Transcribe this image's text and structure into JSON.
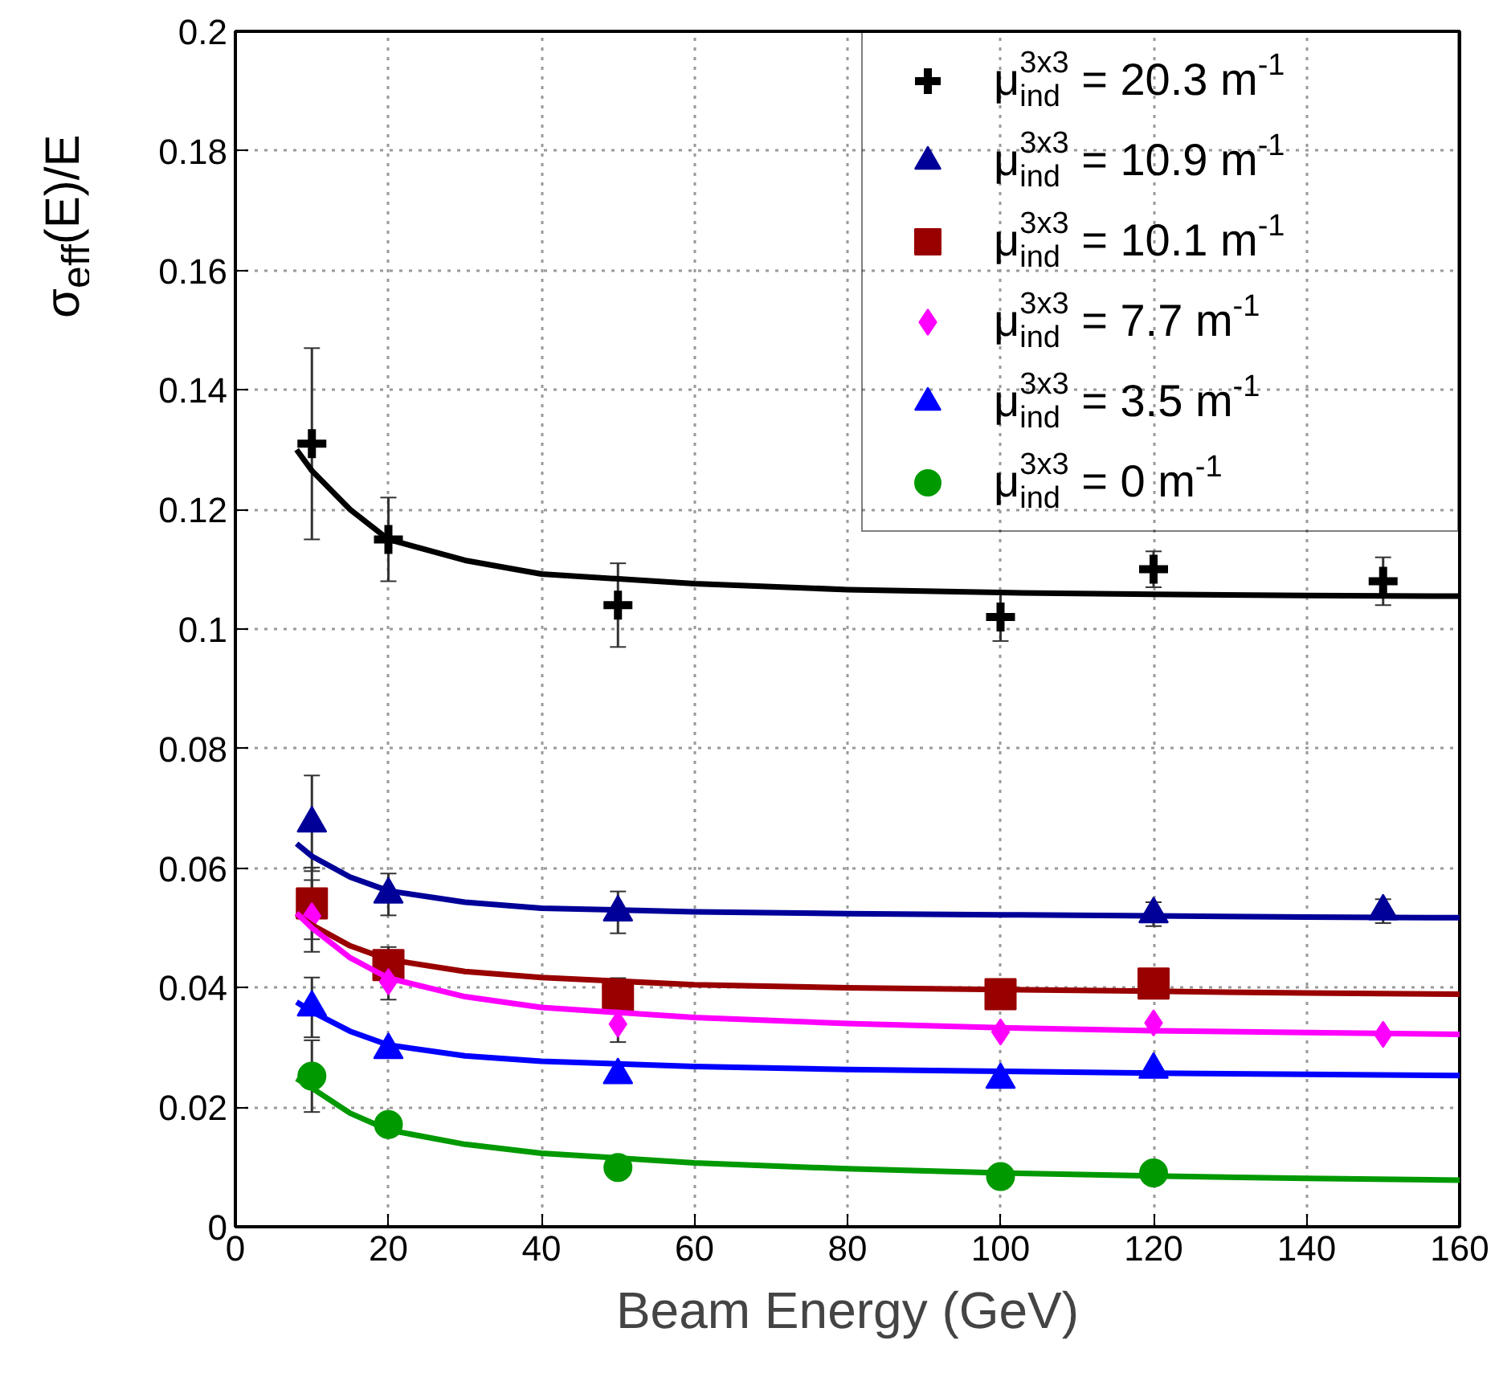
{
  "chart_data": {
    "type": "scatter",
    "xlabel": "Beam Energy (GeV)",
    "ylabel": "σ$_{eff}$(E)/E",
    "xlim": [
      0,
      160
    ],
    "ylim": [
      0,
      0.2
    ],
    "xticks": [
      0,
      20,
      40,
      60,
      80,
      100,
      120,
      140,
      160
    ],
    "yticks": [
      0,
      0.02,
      0.04,
      0.06,
      0.08,
      0.1,
      0.12,
      0.14,
      0.16,
      0.18,
      0.2
    ],
    "grid": true,
    "legend": "top right",
    "series": [
      {
        "name": "μ$^{3x3}$$_{ind}$ = 20.3 m$^{-1}$",
        "color": "#000000",
        "marker": "cross",
        "x": [
          10,
          20,
          50,
          100,
          120,
          150
        ],
        "values": [
          0.131,
          0.115,
          0.104,
          0.102,
          0.11,
          0.108
        ],
        "errors": [
          0.016,
          0.007,
          0.007,
          0.004,
          0.003,
          0.004
        ]
      },
      {
        "name": "μ$^{3x3}$$_{ind}$ = 10.9 m$^{-1}$",
        "color": "#000099",
        "marker": "triangle",
        "x": [
          10,
          20,
          50,
          120,
          150
        ],
        "values": [
          0.0675,
          0.0556,
          0.0526,
          0.0523,
          0.0528
        ],
        "errors": [
          0.008,
          0.0035,
          0.0035,
          0.002,
          0.002
        ]
      },
      {
        "name": "μ$^{3x3}$$_{ind}$ = 10.1 m$^{-1}$",
        "color": "#990000",
        "marker": "square",
        "x": [
          10,
          20,
          50,
          100,
          120
        ],
        "values": [
          0.0541,
          0.0438,
          0.0386,
          0.0389,
          0.0407
        ],
        "errors": [
          0.006,
          0.003,
          0.003,
          null,
          null
        ]
      },
      {
        "name": "μ$^{3x3}$$_{ind}$ = 7.7 m$^{-1}$",
        "color": "#ff00ff",
        "marker": "diamond",
        "x": [
          10,
          20,
          50,
          100,
          120,
          150
        ],
        "values": [
          0.052,
          0.041,
          0.0339,
          0.0326,
          0.0341,
          0.0322
        ],
        "errors": [
          0.006,
          0.003,
          0.003,
          null,
          null,
          null
        ]
      },
      {
        "name": "μ$^{3x3}$$_{ind}$ = 3.5 m$^{-1}$",
        "color": "#0000ff",
        "marker": "triangle",
        "x": [
          10,
          20,
          50,
          100,
          120
        ],
        "values": [
          0.0367,
          0.0296,
          0.0254,
          0.0246,
          0.0263
        ],
        "errors": [
          0.005,
          null,
          null,
          null,
          null
        ]
      },
      {
        "name": "μ$^{3x3}$$_{ind}$ = 0 m$^{-1}$",
        "color": "#009900",
        "marker": "circle",
        "x": [
          10,
          20,
          50,
          100,
          120
        ],
        "values": [
          0.0252,
          0.0171,
          0.0099,
          0.0084,
          0.009
        ],
        "errors": [
          0.006,
          null,
          null,
          null,
          null
        ]
      },
      {
        "type": "line",
        "color": "#000000",
        "x": [
          8,
          10,
          15,
          20,
          30,
          40,
          60,
          80,
          100,
          120,
          140,
          160
        ],
        "values": [
          0.13,
          0.1265,
          0.12,
          0.115,
          0.1115,
          0.1092,
          0.1076,
          0.1066,
          0.1061,
          0.1058,
          0.1056,
          0.1055
        ]
      },
      {
        "type": "line",
        "color": "#000099",
        "x": [
          8,
          10,
          15,
          20,
          30,
          40,
          60,
          80,
          100,
          120,
          140,
          160
        ],
        "values": [
          0.0641,
          0.062,
          0.0585,
          0.0562,
          0.0543,
          0.0533,
          0.0527,
          0.0524,
          0.0522,
          0.052,
          0.0518,
          0.0517
        ]
      },
      {
        "type": "line",
        "color": "#990000",
        "x": [
          8,
          10,
          15,
          20,
          30,
          40,
          60,
          80,
          100,
          120,
          140,
          160
        ],
        "values": [
          0.0523,
          0.0505,
          0.047,
          0.0447,
          0.0427,
          0.0417,
          0.0405,
          0.04,
          0.0397,
          0.0394,
          0.0391,
          0.0389
        ]
      },
      {
        "type": "line",
        "color": "#ff00ff",
        "x": [
          8,
          10,
          15,
          20,
          30,
          40,
          60,
          80,
          100,
          120,
          140,
          160
        ],
        "values": [
          0.0525,
          0.05,
          0.045,
          0.0416,
          0.0385,
          0.0367,
          0.035,
          0.034,
          0.0333,
          0.0328,
          0.0325,
          0.0322
        ]
      },
      {
        "type": "line",
        "color": "#0000ff",
        "x": [
          8,
          10,
          15,
          20,
          30,
          40,
          60,
          80,
          100,
          120,
          140,
          160
        ],
        "values": [
          0.0376,
          0.036,
          0.0327,
          0.0304,
          0.0286,
          0.0277,
          0.0268,
          0.0263,
          0.026,
          0.0257,
          0.0255,
          0.0253
        ]
      },
      {
        "type": "line",
        "color": "#009900",
        "x": [
          8,
          10,
          15,
          20,
          30,
          40,
          60,
          80,
          100,
          120,
          140,
          160
        ],
        "values": [
          0.0248,
          0.0232,
          0.019,
          0.0162,
          0.0138,
          0.0123,
          0.0107,
          0.0097,
          0.009,
          0.0085,
          0.0081,
          0.0078
        ]
      }
    ]
  }
}
